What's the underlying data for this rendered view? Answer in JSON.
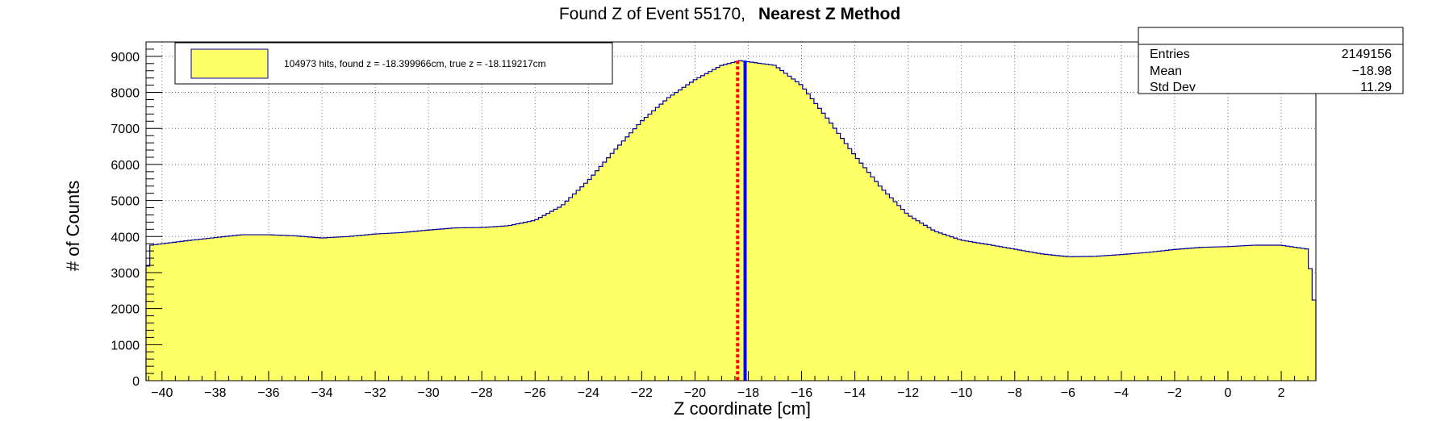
{
  "chart_data": {
    "type": "histogram",
    "title": "Found Z of Event 55170,",
    "title_bold": "Nearest Z Method",
    "xlabel": "Z coordinate [cm]",
    "ylabel": "# of Counts",
    "xlim": [
      -40.6,
      3.3
    ],
    "ylim": [
      0,
      9400
    ],
    "x_ticks": [
      -40,
      -38,
      -36,
      -34,
      -32,
      -30,
      -28,
      -26,
      -24,
      -22,
      -20,
      -18,
      -16,
      -14,
      -12,
      -10,
      -8,
      -6,
      -4,
      -2,
      0,
      2
    ],
    "x_tick_labels": [
      "−40",
      "−38",
      "−36",
      "−34",
      "−32",
      "−30",
      "−28",
      "−26",
      "−24",
      "−22",
      "−20",
      "−18",
      "−16",
      "−14",
      "−12",
      "−10",
      "−8",
      "−6",
      "−4",
      "−2",
      "0",
      "2"
    ],
    "y_ticks": [
      0,
      1000,
      2000,
      3000,
      4000,
      5000,
      6000,
      7000,
      8000,
      9000
    ],
    "y_tick_labels": [
      "0",
      "1000",
      "2000",
      "3000",
      "4000",
      "5000",
      "6000",
      "7000",
      "8000",
      "9000"
    ],
    "grid": true,
    "fill_color": "#ffff66",
    "line_color": "#000099",
    "profile": [
      [
        -40.6,
        1800
      ],
      [
        -40.5,
        3750
      ],
      [
        -40,
        3800
      ],
      [
        -39,
        3890
      ],
      [
        -38,
        3970
      ],
      [
        -37,
        4050
      ],
      [
        -36,
        4050
      ],
      [
        -35,
        4020
      ],
      [
        -34,
        3960
      ],
      [
        -33,
        4000
      ],
      [
        -32,
        4070
      ],
      [
        -31,
        4110
      ],
      [
        -30,
        4180
      ],
      [
        -29,
        4240
      ],
      [
        -28,
        4250
      ],
      [
        -27,
        4300
      ],
      [
        -26,
        4450
      ],
      [
        -25,
        4850
      ],
      [
        -24,
        5550
      ],
      [
        -23,
        6400
      ],
      [
        -22,
        7200
      ],
      [
        -21,
        7850
      ],
      [
        -20,
        8350
      ],
      [
        -19,
        8750
      ],
      [
        -18.3,
        8880
      ],
      [
        -17,
        8750
      ],
      [
        -16,
        8200
      ],
      [
        -15,
        7250
      ],
      [
        -14,
        6250
      ],
      [
        -13,
        5350
      ],
      [
        -12,
        4600
      ],
      [
        -11,
        4150
      ],
      [
        -10,
        3900
      ],
      [
        -9,
        3780
      ],
      [
        -8,
        3650
      ],
      [
        -7,
        3520
      ],
      [
        -6,
        3440
      ],
      [
        -5,
        3450
      ],
      [
        -4,
        3500
      ],
      [
        -3,
        3560
      ],
      [
        -2,
        3640
      ],
      [
        -1,
        3700
      ],
      [
        0,
        3720
      ],
      [
        1,
        3760
      ],
      [
        2,
        3760
      ],
      [
        3,
        3650
      ],
      [
        3.3,
        1800
      ]
    ],
    "markers": [
      {
        "name": "found-z",
        "x": -18.399966,
        "color": "#ff0000",
        "style": "dotted"
      },
      {
        "name": "true-z",
        "x": -18.119217,
        "color": "#0000ff",
        "style": "solid"
      }
    ],
    "legend": {
      "text": "104973 hits, found z = -18.399966cm, true z = -18.119217cm",
      "placement": "top-left"
    },
    "stats": {
      "rows": [
        {
          "label": "Entries",
          "value": "2149156"
        },
        {
          "label": "Mean",
          "value": "−18.98"
        },
        {
          "label": "Std Dev",
          "value": "11.29"
        }
      ],
      "placement": "top-right"
    }
  }
}
